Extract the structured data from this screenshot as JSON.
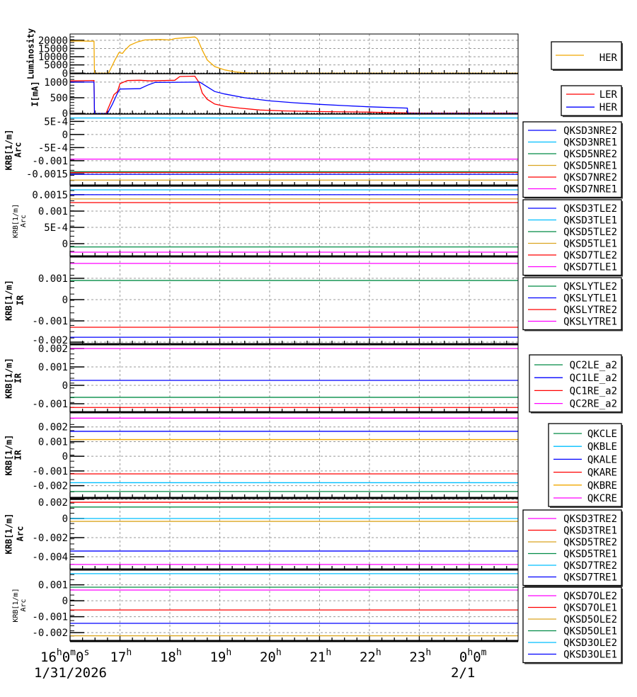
{
  "chart_data": {
    "type": "line",
    "x_unit": "hour of day (1/31/2026)",
    "x_range": [
      16.0,
      24.98
    ],
    "x_ticks": [
      {
        "value": 16,
        "label": "16h0m0s"
      },
      {
        "value": 17,
        "label": "17h"
      },
      {
        "value": 18,
        "label": "18h"
      },
      {
        "value": 19,
        "label": "19h"
      },
      {
        "value": 20,
        "label": "20h"
      },
      {
        "value": 21,
        "label": "21h"
      },
      {
        "value": 22,
        "label": "22h"
      },
      {
        "value": 23,
        "label": "23h"
      },
      {
        "value": 24,
        "label": "0h0m"
      }
    ],
    "date_labels": [
      {
        "value": 16,
        "label": "1/31/2026"
      },
      {
        "value": 24,
        "label": "2/1"
      }
    ],
    "grid": true,
    "panels": [
      {
        "ylabel": [
          "Luminosity"
        ],
        "ylim": [
          -300,
          23800
        ],
        "yticks": [
          {
            "v": 20000,
            "l": "20000"
          },
          {
            "v": 15000,
            "l": "15000"
          },
          {
            "v": 10000,
            "l": "10000"
          },
          {
            "v": 5000,
            "l": "5000"
          },
          {
            "v": 0,
            "l": "0"
          }
        ],
        "series": [
          {
            "name": "HER",
            "color": "#f0a800",
            "points": [
              [
                16,
                19500
              ],
              [
                16.2,
                19600
              ],
              [
                16.4,
                19400
              ],
              [
                16.48,
                19500
              ],
              [
                16.49,
                0
              ],
              [
                16.77,
                0
              ],
              [
                16.9,
                8000
              ],
              [
                16.98,
                12500
              ],
              [
                17.05,
                12000
              ],
              [
                17.1,
                14000
              ],
              [
                17.2,
                17000
              ],
              [
                17.35,
                19000
              ],
              [
                17.5,
                20200
              ],
              [
                17.8,
                20500
              ],
              [
                18.0,
                20200
              ],
              [
                18.1,
                21000
              ],
              [
                18.3,
                21500
              ],
              [
                18.5,
                22000
              ],
              [
                18.55,
                21000
              ],
              [
                18.65,
                14000
              ],
              [
                18.75,
                8000
              ],
              [
                18.9,
                4000
              ],
              [
                19.1,
                2000
              ],
              [
                19.3,
                800
              ],
              [
                19.5,
                200
              ],
              [
                19.7,
                0
              ],
              [
                21,
                0
              ],
              [
                24.98,
                0
              ]
            ]
          }
        ],
        "legend": [
          {
            "name": "HER",
            "color": "#f0a800"
          }
        ]
      },
      {
        "ylabel": [
          "I[mA]"
        ],
        "ylim": [
          -20,
          1270
        ],
        "yticks": [
          {
            "v": 1000,
            "l": "1000"
          },
          {
            "v": 500,
            "l": "500"
          },
          {
            "v": 0,
            "l": "0"
          }
        ],
        "series": [
          {
            "name": "LER",
            "color": "#ff0000",
            "points": [
              [
                16,
                1040
              ],
              [
                16.48,
                1050
              ],
              [
                16.49,
                0
              ],
              [
                16.72,
                0
              ],
              [
                16.8,
                300
              ],
              [
                16.88,
                600
              ],
              [
                16.95,
                700
              ],
              [
                17.0,
                950
              ],
              [
                17.15,
                1050
              ],
              [
                17.4,
                1060
              ],
              [
                17.6,
                1040
              ],
              [
                18.1,
                1060
              ],
              [
                18.2,
                1180
              ],
              [
                18.5,
                1190
              ],
              [
                18.58,
                1000
              ],
              [
                18.65,
                650
              ],
              [
                18.75,
                450
              ],
              [
                18.9,
                300
              ],
              [
                19.1,
                230
              ],
              [
                19.4,
                170
              ],
              [
                19.8,
                110
              ],
              [
                20.3,
                80
              ],
              [
                21,
                60
              ],
              [
                22,
                40
              ],
              [
                22.5,
                20
              ],
              [
                23,
                10
              ],
              [
                24.98,
                10
              ]
            ]
          },
          {
            "name": "HER",
            "color": "#0000ff",
            "points": [
              [
                16,
                1000
              ],
              [
                16.48,
                1000
              ],
              [
                16.49,
                0
              ],
              [
                16.75,
                0
              ],
              [
                16.85,
                300
              ],
              [
                16.95,
                650
              ],
              [
                17.0,
                780
              ],
              [
                17.4,
                790
              ],
              [
                17.55,
                900
              ],
              [
                17.7,
                990
              ],
              [
                18.6,
                1000
              ],
              [
                18.75,
                850
              ],
              [
                18.9,
                700
              ],
              [
                19.1,
                620
              ],
              [
                19.5,
                500
              ],
              [
                20,
                400
              ],
              [
                20.5,
                340
              ],
              [
                21,
                290
              ],
              [
                21.5,
                250
              ],
              [
                22,
                210
              ],
              [
                22.76,
                170
              ],
              [
                22.77,
                0
              ],
              [
                24.98,
                0
              ]
            ]
          }
        ],
        "legend": [
          {
            "name": "LER",
            "color": "#ff0000"
          },
          {
            "name": "HER",
            "color": "#0000ff"
          }
        ]
      },
      {
        "ylabel": [
          "KRB[1/m]",
          "Arc"
        ],
        "ylim": [
          -0.00195,
          0.00078
        ],
        "yticks": [
          {
            "v": 0.0005,
            "l": "5E-4"
          },
          {
            "v": 0,
            "l": "0"
          },
          {
            "v": -0.0005,
            "l": "-5E-4"
          },
          {
            "v": -0.001,
            "l": "-0.001"
          },
          {
            "v": -0.0015,
            "l": "-0.0015"
          }
        ],
        "levels": [
          {
            "v": 0.00063,
            "color": "#00bfff"
          },
          {
            "v": -0.00094,
            "color": "#ff00ff"
          },
          {
            "v": -0.00142,
            "color": "#008b45"
          },
          {
            "v": -0.00145,
            "color": "#ff0000"
          },
          {
            "v": -0.00152,
            "color": "#0000ff"
          },
          {
            "v": -0.00174,
            "color": "#daa520"
          }
        ],
        "legend": [
          {
            "name": "QKSD3NRE2",
            "color": "#0000ff"
          },
          {
            "name": "QKSD3NRE1",
            "color": "#00bfff"
          },
          {
            "name": "QKSD5NRE2",
            "color": "#008b45"
          },
          {
            "name": "QKSD5NRE1",
            "color": "#daa520"
          },
          {
            "name": "QKSD7NRE2",
            "color": "#ff0000"
          },
          {
            "name": "QKSD7NRE1",
            "color": "#ff00ff"
          }
        ]
      },
      {
        "ylabel": [
          "KRB[1/m]",
          "Arc"
        ],
        "small": true,
        "ylim": [
          -0.00039,
          0.00178
        ],
        "yticks": [
          {
            "v": 0.0015,
            "l": "0.0015"
          },
          {
            "v": 0.001,
            "l": "0.001"
          },
          {
            "v": 0.0005,
            "l": "5E-4"
          },
          {
            "v": 0,
            "l": "0"
          }
        ],
        "levels": [
          {
            "v": 0.00165,
            "color": "#00bfff"
          },
          {
            "v": 0.0015,
            "color": "#0000ff"
          },
          {
            "v": 0.00137,
            "color": "#daa520"
          },
          {
            "v": 0.00126,
            "color": "#ff0000"
          },
          {
            "v": -0.0001,
            "color": "#008b45"
          },
          {
            "v": -0.00026,
            "color": "#ff00ff"
          }
        ],
        "legend": [
          {
            "name": "QKSD3TLE2",
            "color": "#0000ff"
          },
          {
            "name": "QKSD3TLE1",
            "color": "#00bfff"
          },
          {
            "name": "QKSD5TLE2",
            "color": "#008b45"
          },
          {
            "name": "QKSD5TLE1",
            "color": "#daa520"
          },
          {
            "name": "QKSD7TLE2",
            "color": "#ff0000"
          },
          {
            "name": "QKSD7TLE1",
            "color": "#ff00ff"
          }
        ]
      },
      {
        "ylabel": [
          "KRB[1/m]",
          "IR"
        ],
        "big": true,
        "ylim": [
          -0.0021,
          0.00203
        ],
        "yticks": [
          {
            "v": 0.001,
            "l": "0.001"
          },
          {
            "v": 0,
            "l": "0"
          },
          {
            "v": -0.001,
            "l": "-0.001"
          },
          {
            "v": -0.002,
            "l": "-0.002"
          }
        ],
        "levels": [
          {
            "v": 0.0017,
            "color": "#ff00ff"
          },
          {
            "v": 0.0009,
            "color": "#008b45"
          },
          {
            "v": -0.0013,
            "color": "#ff0000"
          },
          {
            "v": -0.00177,
            "color": "#0000ff"
          }
        ],
        "legend": [
          {
            "name": "QKSLYTLE2",
            "color": "#008b45"
          },
          {
            "name": "QKSLYTLE1",
            "color": "#0000ff"
          },
          {
            "name": "QKSLYTRE2",
            "color": "#ff0000"
          },
          {
            "name": "QKSLYTRE1",
            "color": "#ff00ff"
          }
        ]
      },
      {
        "ylabel": [
          "KRB[1/m]",
          "IR"
        ],
        "ylim": [
          -0.00146,
          0.00223
        ],
        "yticks": [
          {
            "v": 0.002,
            "l": "0.002"
          },
          {
            "v": 0.001,
            "l": "0.001"
          },
          {
            "v": 0,
            "l": "0"
          },
          {
            "v": -0.001,
            "l": "-0.001"
          }
        ],
        "levels": [
          {
            "v": 0.002,
            "color": "#ff00ff"
          },
          {
            "v": 0.00027,
            "color": "#0000ff"
          },
          {
            "v": -0.00065,
            "color": "#008b45"
          },
          {
            "v": -0.0012,
            "color": "#ff0000"
          }
        ],
        "legend": [
          {
            "name": "QC2LE_a2",
            "color": "#008b45"
          },
          {
            "name": "QC1LE_a2",
            "color": "#0000ff"
          },
          {
            "name": "QC1RE_a2",
            "color": "#ff0000"
          },
          {
            "name": "QC2RE_a2",
            "color": "#ff00ff"
          }
        ]
      },
      {
        "ylabel": [
          "KRB[1/m]",
          "IR"
        ],
        "ylim": [
          -0.00284,
          0.003
        ],
        "yticks": [
          {
            "v": 0.002,
            "l": "0.002"
          },
          {
            "v": 0.001,
            "l": "0.001"
          },
          {
            "v": 0,
            "l": "0"
          },
          {
            "v": -0.001,
            "l": "-0.001"
          },
          {
            "v": -0.002,
            "l": "-0.002"
          }
        ],
        "levels": [
          {
            "v": 0.0026,
            "color": "#ff00ff"
          },
          {
            "v": 0.0017,
            "color": "#0000ff"
          },
          {
            "v": 0.00114,
            "color": "#f0a800"
          },
          {
            "v": -0.0012,
            "color": "#ff0000"
          },
          {
            "v": -0.0018,
            "color": "#00bfff"
          },
          {
            "v": -0.0024,
            "color": "#008b45"
          }
        ],
        "legend": [
          {
            "name": "QKCLE",
            "color": "#008b45"
          },
          {
            "name": "QKBLE",
            "color": "#00bfff"
          },
          {
            "name": "QKALE",
            "color": "#0000ff"
          },
          {
            "name": "QKARE",
            "color": "#ff0000"
          },
          {
            "name": "QKBRE",
            "color": "#f0a800"
          },
          {
            "name": "QKCRE",
            "color": "#ff00ff"
          }
        ]
      },
      {
        "ylabel": [
          "KRB[1/m]",
          "Arc"
        ],
        "big": true,
        "ylim": [
          -0.00533,
          0.00215
        ],
        "yticks": [
          {
            "v": 0.002,
            "l": "0.002"
          },
          {
            "v": 0,
            "l": "0"
          },
          {
            "v": -0.002,
            "l": "-0.002"
          },
          {
            "v": -0.004,
            "l": "-0.004"
          }
        ],
        "levels": [
          {
            "v": 0.0017,
            "color": "#ff0000"
          },
          {
            "v": 0.0012,
            "color": "#008b45"
          },
          {
            "v": 0.0,
            "color": "#00bfff"
          },
          {
            "v": -0.0003,
            "color": "#daa520"
          },
          {
            "v": -0.0034,
            "color": "#0000ff"
          },
          {
            "v": -0.0048,
            "color": "#ff00ff"
          }
        ],
        "legend": [
          {
            "name": "QKSD3TRE2",
            "color": "#ff00ff"
          },
          {
            "name": "QKSD3TRE1",
            "color": "#ff0000"
          },
          {
            "name": "QKSD5TRE2",
            "color": "#daa520"
          },
          {
            "name": "QKSD5TRE1",
            "color": "#008b45"
          },
          {
            "name": "QKSD7TRE2",
            "color": "#00bfff"
          },
          {
            "name": "QKSD7TRE1",
            "color": "#0000ff"
          }
        ]
      },
      {
        "ylabel": [
          "KRB[1/m]",
          "Arc"
        ],
        "small": true,
        "ylim": [
          -0.00253,
          0.00196
        ],
        "yticks": [
          {
            "v": 0.001,
            "l": "0.001"
          },
          {
            "v": 0,
            "l": "0"
          },
          {
            "v": -0.001,
            "l": "-0.001"
          },
          {
            "v": -0.002,
            "l": "-0.002"
          }
        ],
        "levels": [
          {
            "v": 0.0017,
            "color": "#00bfff"
          },
          {
            "v": 0.00085,
            "color": "#008b45"
          },
          {
            "v": 0.00067,
            "color": "#ff00ff"
          },
          {
            "v": -0.00058,
            "color": "#ff0000"
          },
          {
            "v": -0.00142,
            "color": "#0000ff"
          },
          {
            "v": -0.0022,
            "color": "#daa520"
          }
        ],
        "legend": [
          {
            "name": "QKSD7OLE2",
            "color": "#ff00ff"
          },
          {
            "name": "QKSD7OLE1",
            "color": "#ff0000"
          },
          {
            "name": "QKSD5OLE2",
            "color": "#daa520"
          },
          {
            "name": "QKSD5OLE1",
            "color": "#008b45"
          },
          {
            "name": "QKSD3OLE2",
            "color": "#00bfff"
          },
          {
            "name": "QKSD3OLE1",
            "color": "#0000ff"
          }
        ]
      }
    ]
  }
}
